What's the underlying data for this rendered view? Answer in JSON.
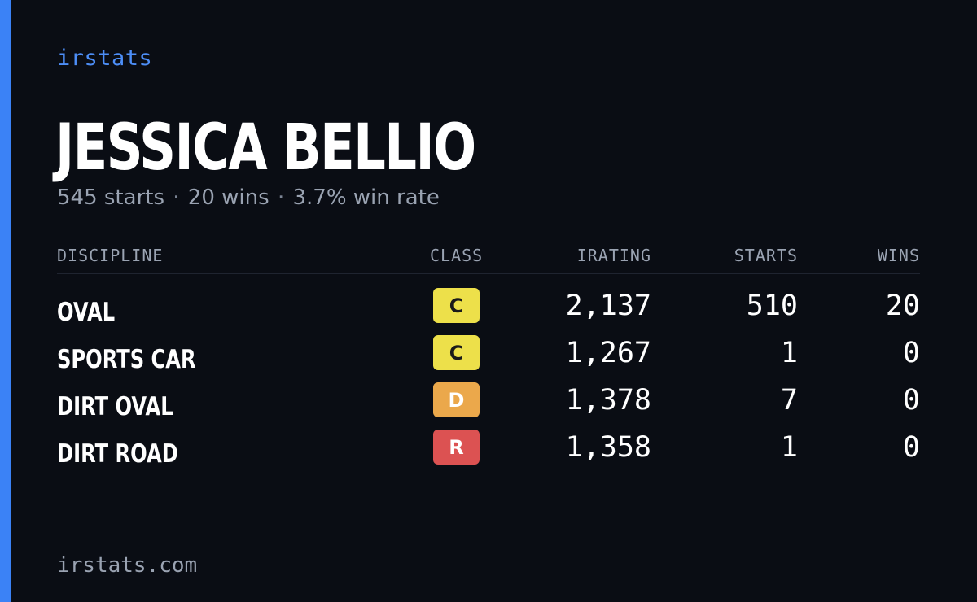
{
  "brand": "irstats",
  "player": {
    "name": "JESSICA BELLIO",
    "starts_text": "545 starts",
    "wins_text": "20 wins",
    "win_rate_text": "3.7% win rate",
    "separator": "·"
  },
  "table": {
    "headers": {
      "discipline": "DISCIPLINE",
      "class": "CLASS",
      "irating": "IRATING",
      "starts": "STARTS",
      "wins": "WINS"
    },
    "rows": [
      {
        "discipline": "OVAL",
        "class": "C",
        "class_color": "#ede04a",
        "class_text_color": "#1a1a1a",
        "irating": "2,137",
        "starts": "510",
        "wins": "20"
      },
      {
        "discipline": "SPORTS CAR",
        "class": "C",
        "class_color": "#ede04a",
        "class_text_color": "#1a1a1a",
        "irating": "1,267",
        "starts": "1",
        "wins": "0"
      },
      {
        "discipline": "DIRT OVAL",
        "class": "D",
        "class_color": "#eba84b",
        "class_text_color": "#ffffff",
        "irating": "1,378",
        "starts": "7",
        "wins": "0"
      },
      {
        "discipline": "DIRT ROAD",
        "class": "R",
        "class_color": "#dc5252",
        "class_text_color": "#ffffff",
        "irating": "1,358",
        "starts": "1",
        "wins": "0"
      }
    ]
  },
  "footer": "irstats.com",
  "colors": {
    "background": "#0a0d14",
    "accent": "#3b82f6"
  }
}
